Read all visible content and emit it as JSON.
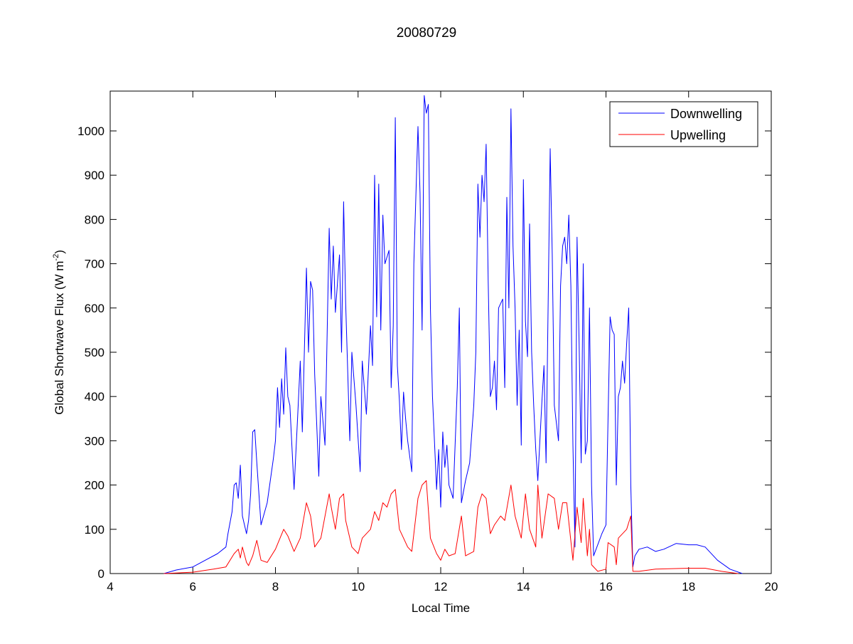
{
  "chart_data": {
    "type": "line",
    "title": "20080729",
    "xlabel": "Local Time",
    "ylabel": {
      "prefix": "Global Shortwave Flux (W m",
      "sup": "-2",
      "suffix": ")"
    },
    "xlim": [
      4,
      20
    ],
    "ylim": [
      0,
      1090
    ],
    "xticks": [
      4,
      6,
      8,
      10,
      12,
      14,
      16,
      18,
      20
    ],
    "yticks": [
      0,
      100,
      200,
      300,
      400,
      500,
      600,
      700,
      800,
      900,
      1000
    ],
    "grid": false,
    "legend_position": "top-right",
    "series": [
      {
        "name": "Downwelling",
        "color": "#0000ff",
        "points": [
          [
            5.3,
            0
          ],
          [
            5.6,
            8
          ],
          [
            6.0,
            15
          ],
          [
            6.3,
            30
          ],
          [
            6.6,
            45
          ],
          [
            6.8,
            60
          ],
          [
            6.85,
            90
          ],
          [
            6.95,
            140
          ],
          [
            7.0,
            200
          ],
          [
            7.05,
            205
          ],
          [
            7.1,
            170
          ],
          [
            7.15,
            245
          ],
          [
            7.2,
            130
          ],
          [
            7.3,
            90
          ],
          [
            7.35,
            120
          ],
          [
            7.4,
            180
          ],
          [
            7.45,
            320
          ],
          [
            7.5,
            325
          ],
          [
            7.55,
            250
          ],
          [
            7.65,
            110
          ],
          [
            7.8,
            160
          ],
          [
            7.95,
            260
          ],
          [
            8.0,
            300
          ],
          [
            8.05,
            420
          ],
          [
            8.1,
            330
          ],
          [
            8.15,
            440
          ],
          [
            8.2,
            360
          ],
          [
            8.25,
            510
          ],
          [
            8.3,
            400
          ],
          [
            8.35,
            380
          ],
          [
            8.45,
            190
          ],
          [
            8.55,
            380
          ],
          [
            8.6,
            480
          ],
          [
            8.65,
            320
          ],
          [
            8.75,
            690
          ],
          [
            8.8,
            500
          ],
          [
            8.85,
            660
          ],
          [
            8.9,
            640
          ],
          [
            8.95,
            450
          ],
          [
            9.05,
            220
          ],
          [
            9.1,
            400
          ],
          [
            9.2,
            290
          ],
          [
            9.3,
            780
          ],
          [
            9.35,
            620
          ],
          [
            9.4,
            740
          ],
          [
            9.45,
            590
          ],
          [
            9.55,
            720
          ],
          [
            9.6,
            500
          ],
          [
            9.65,
            840
          ],
          [
            9.7,
            610
          ],
          [
            9.8,
            300
          ],
          [
            9.85,
            500
          ],
          [
            9.95,
            380
          ],
          [
            10.05,
            230
          ],
          [
            10.1,
            480
          ],
          [
            10.2,
            360
          ],
          [
            10.3,
            560
          ],
          [
            10.35,
            470
          ],
          [
            10.4,
            900
          ],
          [
            10.45,
            580
          ],
          [
            10.5,
            880
          ],
          [
            10.55,
            550
          ],
          [
            10.6,
            810
          ],
          [
            10.65,
            700
          ],
          [
            10.75,
            730
          ],
          [
            10.8,
            420
          ],
          [
            10.85,
            560
          ],
          [
            10.9,
            1030
          ],
          [
            10.95,
            470
          ],
          [
            11.0,
            390
          ],
          [
            11.05,
            280
          ],
          [
            11.1,
            410
          ],
          [
            11.15,
            350
          ],
          [
            11.2,
            300
          ],
          [
            11.3,
            230
          ],
          [
            11.35,
            700
          ],
          [
            11.45,
            1010
          ],
          [
            11.5,
            860
          ],
          [
            11.55,
            550
          ],
          [
            11.6,
            1080
          ],
          [
            11.65,
            1040
          ],
          [
            11.7,
            1060
          ],
          [
            11.75,
            600
          ],
          [
            11.8,
            400
          ],
          [
            11.9,
            190
          ],
          [
            11.95,
            280
          ],
          [
            12.0,
            150
          ],
          [
            12.05,
            320
          ],
          [
            12.1,
            240
          ],
          [
            12.15,
            290
          ],
          [
            12.2,
            200
          ],
          [
            12.3,
            170
          ],
          [
            12.4,
            420
          ],
          [
            12.45,
            600
          ],
          [
            12.5,
            160
          ],
          [
            12.6,
            210
          ],
          [
            12.7,
            250
          ],
          [
            12.8,
            380
          ],
          [
            12.85,
            500
          ],
          [
            12.9,
            880
          ],
          [
            12.95,
            760
          ],
          [
            13.0,
            900
          ],
          [
            13.05,
            840
          ],
          [
            13.1,
            970
          ],
          [
            13.15,
            660
          ],
          [
            13.2,
            400
          ],
          [
            13.25,
            420
          ],
          [
            13.3,
            480
          ],
          [
            13.35,
            370
          ],
          [
            13.4,
            600
          ],
          [
            13.5,
            620
          ],
          [
            13.55,
            420
          ],
          [
            13.6,
            850
          ],
          [
            13.65,
            600
          ],
          [
            13.7,
            1050
          ],
          [
            13.75,
            740
          ],
          [
            13.8,
            600
          ],
          [
            13.85,
            380
          ],
          [
            13.9,
            550
          ],
          [
            13.95,
            290
          ],
          [
            14.0,
            890
          ],
          [
            14.05,
            570
          ],
          [
            14.1,
            490
          ],
          [
            14.15,
            790
          ],
          [
            14.2,
            500
          ],
          [
            14.25,
            380
          ],
          [
            14.3,
            280
          ],
          [
            14.35,
            210
          ],
          [
            14.45,
            390
          ],
          [
            14.5,
            470
          ],
          [
            14.55,
            250
          ],
          [
            14.65,
            960
          ],
          [
            14.7,
            720
          ],
          [
            14.75,
            380
          ],
          [
            14.85,
            300
          ],
          [
            14.9,
            650
          ],
          [
            14.95,
            740
          ],
          [
            15.0,
            760
          ],
          [
            15.05,
            700
          ],
          [
            15.1,
            810
          ],
          [
            15.15,
            650
          ],
          [
            15.2,
            290
          ],
          [
            15.25,
            60
          ],
          [
            15.3,
            760
          ],
          [
            15.35,
            520
          ],
          [
            15.4,
            250
          ],
          [
            15.45,
            700
          ],
          [
            15.5,
            270
          ],
          [
            15.55,
            300
          ],
          [
            15.6,
            600
          ],
          [
            15.65,
            200
          ],
          [
            15.7,
            40
          ],
          [
            15.9,
            90
          ],
          [
            16.0,
            110
          ],
          [
            16.05,
            350
          ],
          [
            16.1,
            580
          ],
          [
            16.15,
            550
          ],
          [
            16.2,
            540
          ],
          [
            16.25,
            200
          ],
          [
            16.3,
            400
          ],
          [
            16.35,
            420
          ],
          [
            16.4,
            480
          ],
          [
            16.45,
            430
          ],
          [
            16.5,
            520
          ],
          [
            16.55,
            600
          ],
          [
            16.6,
            200
          ],
          [
            16.65,
            15
          ],
          [
            16.7,
            40
          ],
          [
            16.8,
            55
          ],
          [
            17.0,
            60
          ],
          [
            17.2,
            50
          ],
          [
            17.4,
            55
          ],
          [
            17.7,
            68
          ],
          [
            18.0,
            65
          ],
          [
            18.2,
            65
          ],
          [
            18.4,
            60
          ],
          [
            18.7,
            30
          ],
          [
            19.0,
            10
          ],
          [
            19.3,
            0
          ]
        ]
      },
      {
        "name": "Upwelling",
        "color": "#ff0000",
        "points": [
          [
            5.3,
            0
          ],
          [
            6.0,
            3
          ],
          [
            6.5,
            10
          ],
          [
            6.8,
            15
          ],
          [
            7.0,
            45
          ],
          [
            7.1,
            55
          ],
          [
            7.15,
            35
          ],
          [
            7.2,
            60
          ],
          [
            7.3,
            25
          ],
          [
            7.35,
            18
          ],
          [
            7.45,
            40
          ],
          [
            7.55,
            75
          ],
          [
            7.65,
            30
          ],
          [
            7.8,
            25
          ],
          [
            8.0,
            55
          ],
          [
            8.2,
            100
          ],
          [
            8.3,
            85
          ],
          [
            8.45,
            50
          ],
          [
            8.6,
            80
          ],
          [
            8.75,
            160
          ],
          [
            8.85,
            130
          ],
          [
            8.95,
            60
          ],
          [
            9.1,
            80
          ],
          [
            9.3,
            180
          ],
          [
            9.35,
            150
          ],
          [
            9.45,
            100
          ],
          [
            9.55,
            170
          ],
          [
            9.65,
            180
          ],
          [
            9.7,
            120
          ],
          [
            9.85,
            60
          ],
          [
            10.0,
            45
          ],
          [
            10.1,
            80
          ],
          [
            10.3,
            100
          ],
          [
            10.4,
            140
          ],
          [
            10.5,
            120
          ],
          [
            10.6,
            160
          ],
          [
            10.7,
            150
          ],
          [
            10.8,
            180
          ],
          [
            10.9,
            190
          ],
          [
            11.0,
            100
          ],
          [
            11.1,
            80
          ],
          [
            11.2,
            60
          ],
          [
            11.3,
            50
          ],
          [
            11.45,
            170
          ],
          [
            11.55,
            200
          ],
          [
            11.65,
            210
          ],
          [
            11.75,
            80
          ],
          [
            11.9,
            45
          ],
          [
            12.0,
            30
          ],
          [
            12.1,
            55
          ],
          [
            12.2,
            40
          ],
          [
            12.35,
            45
          ],
          [
            12.5,
            130
          ],
          [
            12.6,
            40
          ],
          [
            12.8,
            50
          ],
          [
            12.9,
            150
          ],
          [
            13.0,
            180
          ],
          [
            13.1,
            170
          ],
          [
            13.2,
            90
          ],
          [
            13.3,
            110
          ],
          [
            13.45,
            130
          ],
          [
            13.55,
            120
          ],
          [
            13.7,
            200
          ],
          [
            13.8,
            130
          ],
          [
            13.95,
            80
          ],
          [
            14.05,
            180
          ],
          [
            14.15,
            100
          ],
          [
            14.3,
            60
          ],
          [
            14.35,
            200
          ],
          [
            14.45,
            80
          ],
          [
            14.6,
            180
          ],
          [
            14.75,
            170
          ],
          [
            14.85,
            100
          ],
          [
            14.95,
            160
          ],
          [
            15.05,
            160
          ],
          [
            15.2,
            30
          ],
          [
            15.3,
            150
          ],
          [
            15.4,
            70
          ],
          [
            15.45,
            170
          ],
          [
            15.55,
            40
          ],
          [
            15.6,
            100
          ],
          [
            15.65,
            20
          ],
          [
            15.8,
            5
          ],
          [
            16.0,
            10
          ],
          [
            16.05,
            70
          ],
          [
            16.2,
            60
          ],
          [
            16.25,
            20
          ],
          [
            16.3,
            80
          ],
          [
            16.5,
            100
          ],
          [
            16.6,
            130
          ],
          [
            16.65,
            5
          ],
          [
            16.8,
            5
          ],
          [
            17.2,
            10
          ],
          [
            18.0,
            12
          ],
          [
            18.4,
            12
          ],
          [
            18.8,
            5
          ],
          [
            19.2,
            0
          ]
        ]
      }
    ]
  }
}
